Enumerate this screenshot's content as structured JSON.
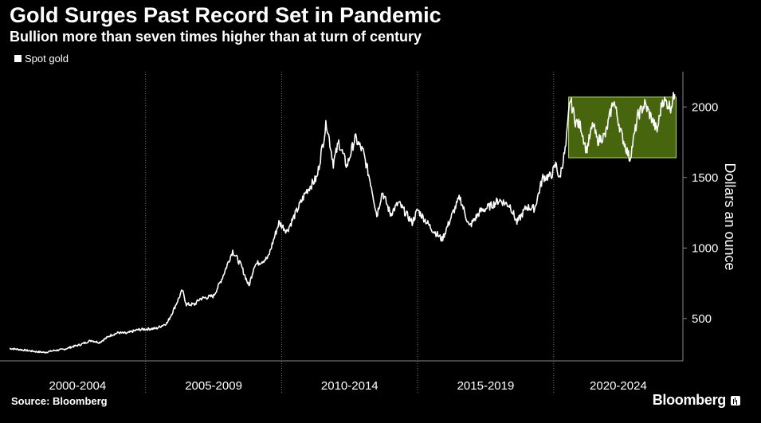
{
  "header": {
    "title": "Gold Surges Past Record Set in Pandemic",
    "subtitle": "Bullion more than seven times higher than at turn of century"
  },
  "footer": {
    "source": "Source: Bloomberg",
    "brand": "Bloomberg"
  },
  "chart_data": {
    "type": "line",
    "title": "Gold Surges Past Record Set in Pandemic",
    "subtitle": "Bullion more than seven times higher than at turn of century",
    "ylabel": "Dollars an ounce",
    "ylim": [
      200,
      2250
    ],
    "xlim": [
      2000.0,
      2024.75
    ],
    "yticks": [
      500,
      1000,
      1500,
      2000
    ],
    "x_period_labels": [
      "2000-2004",
      "2005-2009",
      "2010-2014",
      "2015-2019",
      "2020-2024"
    ],
    "x_period_boundaries": [
      2000,
      2005,
      2010,
      2015,
      2020,
      2025
    ],
    "grid": "vertical dotted lines at period boundaries",
    "legend_position": "top-left",
    "colors": {
      "line": "#ffffff",
      "highlight_fill": "#4a6a0d",
      "highlight_stroke": "#b5e05a",
      "background": "#000000"
    },
    "highlight_box": {
      "x_start": 2020.55,
      "x_end": 2024.5,
      "y_start": 1640,
      "y_end": 2070
    },
    "series": [
      {
        "name": "Spot gold",
        "points": [
          [
            2000.0,
            288
          ],
          [
            2000.3,
            282
          ],
          [
            2000.7,
            272
          ],
          [
            2001.0,
            265
          ],
          [
            2001.3,
            260
          ],
          [
            2001.6,
            272
          ],
          [
            2002.0,
            282
          ],
          [
            2002.3,
            300
          ],
          [
            2002.6,
            315
          ],
          [
            2003.0,
            345
          ],
          [
            2003.3,
            330
          ],
          [
            2003.7,
            380
          ],
          [
            2004.0,
            400
          ],
          [
            2004.3,
            395
          ],
          [
            2004.7,
            420
          ],
          [
            2005.0,
            425
          ],
          [
            2005.4,
            430
          ],
          [
            2005.8,
            470
          ],
          [
            2006.0,
            550
          ],
          [
            2006.35,
            700
          ],
          [
            2006.5,
            600
          ],
          [
            2006.8,
            600
          ],
          [
            2007.0,
            640
          ],
          [
            2007.5,
            660
          ],
          [
            2007.8,
            780
          ],
          [
            2008.2,
            980
          ],
          [
            2008.5,
            880
          ],
          [
            2008.8,
            730
          ],
          [
            2009.0,
            880
          ],
          [
            2009.5,
            930
          ],
          [
            2009.9,
            1180
          ],
          [
            2010.2,
            1120
          ],
          [
            2010.5,
            1240
          ],
          [
            2010.9,
            1400
          ],
          [
            2011.3,
            1500
          ],
          [
            2011.65,
            1890
          ],
          [
            2011.9,
            1600
          ],
          [
            2012.1,
            1750
          ],
          [
            2012.4,
            1580
          ],
          [
            2012.7,
            1780
          ],
          [
            2013.0,
            1680
          ],
          [
            2013.3,
            1440
          ],
          [
            2013.5,
            1230
          ],
          [
            2013.7,
            1400
          ],
          [
            2014.0,
            1240
          ],
          [
            2014.3,
            1320
          ],
          [
            2014.8,
            1180
          ],
          [
            2015.0,
            1270
          ],
          [
            2015.5,
            1140
          ],
          [
            2015.9,
            1060
          ],
          [
            2016.3,
            1250
          ],
          [
            2016.55,
            1360
          ],
          [
            2016.9,
            1150
          ],
          [
            2017.3,
            1260
          ],
          [
            2017.7,
            1300
          ],
          [
            2018.0,
            1340
          ],
          [
            2018.4,
            1300
          ],
          [
            2018.65,
            1180
          ],
          [
            2019.0,
            1290
          ],
          [
            2019.3,
            1280
          ],
          [
            2019.6,
            1500
          ],
          [
            2019.9,
            1510
          ],
          [
            2020.1,
            1600
          ],
          [
            2020.2,
            1480
          ],
          [
            2020.45,
            1720
          ],
          [
            2020.6,
            2060
          ],
          [
            2020.8,
            1900
          ],
          [
            2021.0,
            1860
          ],
          [
            2021.2,
            1690
          ],
          [
            2021.45,
            1880
          ],
          [
            2021.6,
            1760
          ],
          [
            2021.9,
            1800
          ],
          [
            2022.2,
            2050
          ],
          [
            2022.5,
            1800
          ],
          [
            2022.8,
            1630
          ],
          [
            2023.1,
            1940
          ],
          [
            2023.35,
            2020
          ],
          [
            2023.6,
            1920
          ],
          [
            2023.8,
            1830
          ],
          [
            2024.0,
            2050
          ],
          [
            2024.15,
            2030
          ],
          [
            2024.3,
            2000
          ],
          [
            2024.45,
            2090
          ]
        ]
      }
    ]
  }
}
